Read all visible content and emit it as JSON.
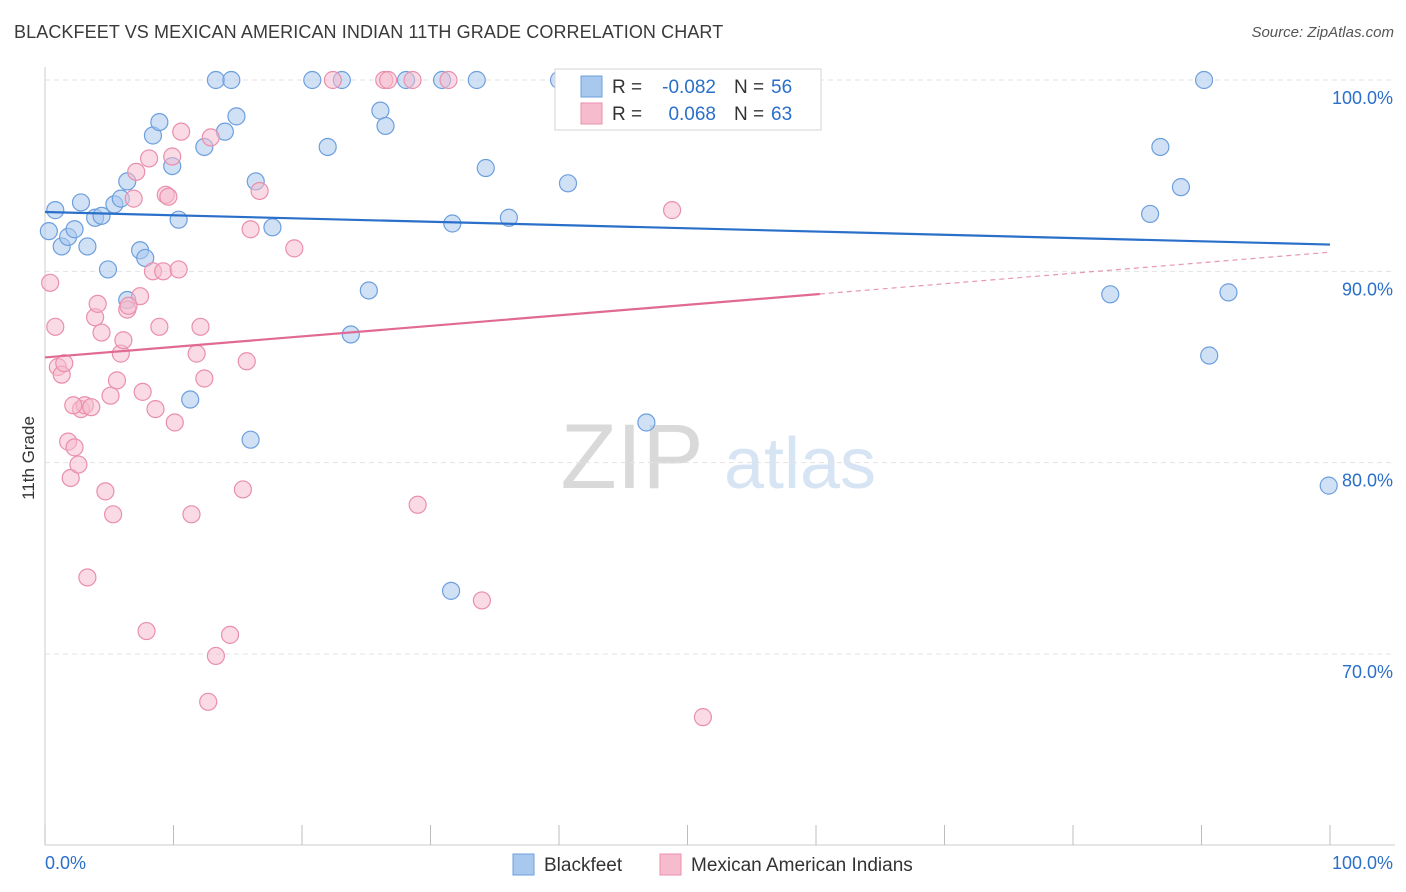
{
  "title": "BLACKFEET VS MEXICAN AMERICAN INDIAN 11TH GRADE CORRELATION CHART",
  "source": "Source: ZipAtlas.com",
  "watermark": {
    "zip": "ZIP",
    "atlas": "atlas"
  },
  "legend_top": {
    "r_label": "R =",
    "n_label": "N =",
    "rows": [
      {
        "r": "-0.082",
        "n": "56"
      },
      {
        "r": "0.068",
        "n": "63"
      }
    ]
  },
  "legend_bottom": [
    "Blackfeet",
    "Mexican American Indians"
  ],
  "colors": {
    "blue_fill": "#a9c8ee",
    "blue_stroke": "#6d9fdd",
    "blue_line": "#2a6fc9",
    "pink_fill": "#f6bccd",
    "pink_stroke": "#ea8fab",
    "pink_line": "#e06a93",
    "value_text": "#2a6fc9",
    "label_text": "#333333"
  },
  "chart_data": {
    "type": "scatter",
    "title": "BLACKFEET VS MEXICAN AMERICAN INDIAN 11TH GRADE CORRELATION CHART",
    "xlabel": "",
    "ylabel": "11th Grade",
    "xlim": [
      0,
      100
    ],
    "ylim": [
      60.5,
      101.5
    ],
    "x_tick_labels": [
      "0.0%",
      "100.0%"
    ],
    "y_ticks": [
      70,
      80,
      90,
      100
    ],
    "y_tick_labels": [
      "70.0%",
      "80.0%",
      "90.0%",
      "100.0%"
    ],
    "grid": true,
    "legend_position": "bottom",
    "series": [
      {
        "name": "Blackfeet",
        "color": "#a9c8ee",
        "r": -0.082,
        "n": 56,
        "trend": {
          "x": [
            0,
            100
          ],
          "y": [
            93.1,
            91.4
          ],
          "dashed_from_x": null
        },
        "points": [
          [
            0.3,
            92.1
          ],
          [
            0.8,
            93.2
          ],
          [
            1.3,
            91.3
          ],
          [
            1.8,
            91.8
          ],
          [
            2.3,
            92.2
          ],
          [
            2.8,
            93.6
          ],
          [
            3.3,
            91.3
          ],
          [
            3.9,
            92.8
          ],
          [
            4.4,
            92.9
          ],
          [
            4.9,
            90.1
          ],
          [
            5.4,
            93.5
          ],
          [
            5.9,
            93.8
          ],
          [
            6.4,
            94.7
          ],
          [
            7.4,
            91.1
          ],
          [
            7.8,
            90.7
          ],
          [
            8.4,
            97.1
          ],
          [
            8.9,
            97.8
          ],
          [
            9.9,
            95.5
          ],
          [
            10.4,
            92.7
          ],
          [
            11.3,
            83.3
          ],
          [
            12.4,
            96.5
          ],
          [
            13.3,
            100.0
          ],
          [
            14.0,
            97.3
          ],
          [
            14.5,
            100.0
          ],
          [
            14.9,
            98.1
          ],
          [
            16.0,
            81.2
          ],
          [
            16.4,
            94.7
          ],
          [
            17.7,
            92.3
          ],
          [
            20.8,
            100.0
          ],
          [
            22.0,
            96.5
          ],
          [
            23.1,
            100.0
          ],
          [
            23.8,
            86.7
          ],
          [
            25.2,
            89.0
          ],
          [
            26.1,
            98.4
          ],
          [
            26.5,
            97.6
          ],
          [
            28.1,
            100.0
          ],
          [
            30.9,
            100.0
          ],
          [
            31.7,
            92.5
          ],
          [
            33.6,
            100.0
          ],
          [
            34.3,
            95.4
          ],
          [
            36.1,
            92.8
          ],
          [
            40.0,
            100.0
          ],
          [
            40.7,
            94.6
          ],
          [
            46.8,
            82.1
          ],
          [
            47.4,
            100.0
          ],
          [
            50.6,
            100.0
          ],
          [
            82.9,
            88.8
          ],
          [
            86.0,
            93.0
          ],
          [
            86.8,
            96.5
          ],
          [
            88.4,
            94.4
          ],
          [
            90.2,
            100.0
          ],
          [
            90.6,
            85.6
          ],
          [
            92.1,
            88.9
          ],
          [
            99.9,
            78.8
          ],
          [
            31.6,
            73.3
          ],
          [
            6.4,
            88.5
          ]
        ]
      },
      {
        "name": "Mexican American Indians",
        "color": "#f6bccd",
        "r": 0.068,
        "n": 63,
        "trend": {
          "x": [
            0,
            100
          ],
          "y": [
            85.5,
            91.0
          ],
          "dashed_from_x": 60.3
        },
        "points": [
          [
            0.4,
            89.4
          ],
          [
            0.8,
            87.1
          ],
          [
            1.0,
            85.0
          ],
          [
            1.3,
            84.6
          ],
          [
            1.5,
            85.2
          ],
          [
            1.8,
            81.1
          ],
          [
            2.0,
            79.2
          ],
          [
            2.3,
            80.8
          ],
          [
            2.6,
            79.9
          ],
          [
            2.8,
            82.8
          ],
          [
            3.1,
            83.0
          ],
          [
            3.3,
            74.0
          ],
          [
            3.6,
            82.9
          ],
          [
            3.9,
            87.6
          ],
          [
            4.1,
            88.3
          ],
          [
            4.4,
            86.8
          ],
          [
            4.7,
            78.5
          ],
          [
            5.1,
            83.5
          ],
          [
            5.3,
            77.3
          ],
          [
            5.6,
            84.3
          ],
          [
            5.9,
            85.7
          ],
          [
            6.1,
            86.4
          ],
          [
            6.4,
            88.0
          ],
          [
            6.9,
            93.8
          ],
          [
            7.1,
            95.2
          ],
          [
            7.4,
            88.7
          ],
          [
            7.6,
            83.7
          ],
          [
            7.9,
            71.2
          ],
          [
            8.1,
            95.9
          ],
          [
            8.4,
            90.0
          ],
          [
            8.6,
            82.8
          ],
          [
            8.9,
            87.1
          ],
          [
            9.2,
            90.0
          ],
          [
            9.4,
            94.0
          ],
          [
            9.6,
            93.9
          ],
          [
            9.9,
            96.0
          ],
          [
            10.1,
            82.1
          ],
          [
            10.4,
            90.1
          ],
          [
            10.6,
            97.3
          ],
          [
            11.4,
            77.3
          ],
          [
            11.8,
            85.7
          ],
          [
            12.1,
            87.1
          ],
          [
            12.4,
            84.4
          ],
          [
            12.7,
            67.5
          ],
          [
            12.9,
            97.0
          ],
          [
            13.3,
            69.9
          ],
          [
            14.4,
            71.0
          ],
          [
            15.4,
            78.6
          ],
          [
            15.7,
            85.3
          ],
          [
            16.0,
            92.2
          ],
          [
            16.7,
            94.2
          ],
          [
            19.4,
            91.2
          ],
          [
            22.4,
            100.0
          ],
          [
            26.4,
            100.0
          ],
          [
            26.7,
            100.0
          ],
          [
            28.6,
            100.0
          ],
          [
            29.0,
            77.8
          ],
          [
            31.4,
            100.0
          ],
          [
            34.0,
            72.8
          ],
          [
            48.8,
            93.2
          ],
          [
            51.2,
            66.7
          ],
          [
            6.5,
            88.2
          ],
          [
            2.2,
            83.0
          ]
        ]
      }
    ]
  }
}
